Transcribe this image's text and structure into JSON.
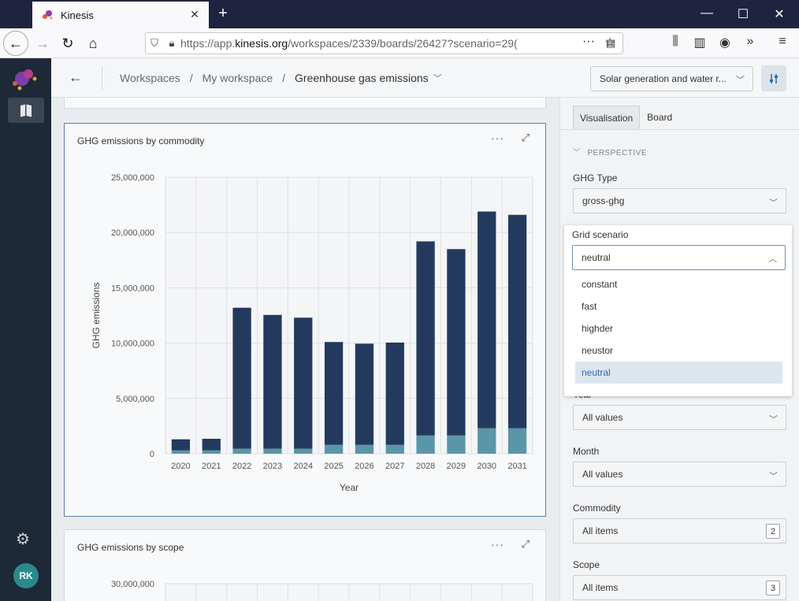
{
  "browser": {
    "tab_title": "Kinesis",
    "url_prefix": "https://app.",
    "url_domain": "kinesis.org",
    "url_rest": "/workspaces/2339/boards/26427?scenario=29("
  },
  "header": {
    "breadcrumbs": [
      "Workspaces",
      "My workspace",
      "Greenhouse gas emissions"
    ],
    "separator": "/",
    "scenario_select": "Solar generation and water r..."
  },
  "sidebar": {
    "avatar_initials": "RK"
  },
  "cards": [
    {
      "title": "GHG emissions by commodity"
    },
    {
      "title": "GHG emissions by scope"
    }
  ],
  "panel": {
    "tabs": [
      "Visualisation",
      "Board"
    ],
    "section": "PERSPECTIVE",
    "ghg_type_label": "GHG Type",
    "ghg_type_value": "gross-ghg",
    "year_label": "Year",
    "year_value": "All values",
    "month_label": "Month",
    "month_value": "All values",
    "commodity_label": "Commodity",
    "commodity_value": "All items",
    "commodity_count": "2",
    "scope_label": "Scope",
    "scope_value": "All items",
    "scope_count": "3"
  },
  "grid_dropdown": {
    "label": "Grid scenario",
    "value": "neutral",
    "options": [
      "constant",
      "fast",
      "highder",
      "neustor",
      "neutral"
    ],
    "selected_index": 4
  },
  "chart_data": [
    {
      "type": "bar",
      "stacked": true,
      "title": "GHG emissions by commodity",
      "xlabel": "Year",
      "ylabel": "GHG emissions",
      "ylim": [
        0,
        25000000
      ],
      "yticks": [
        "0",
        "5,000,000",
        "10,000,000",
        "15,000,000",
        "20,000,000",
        "25,000,000"
      ],
      "categories": [
        "2020",
        "2021",
        "2022",
        "2023",
        "2024",
        "2025",
        "2026",
        "2027",
        "2028",
        "2029",
        "2030",
        "2031"
      ],
      "grid": true,
      "colors": [
        "#5a96a8",
        "#233a5e"
      ],
      "series": [
        {
          "values": [
            300000,
            300000,
            450000,
            450000,
            450000,
            800000,
            800000,
            800000,
            1650000,
            1650000,
            2300000,
            2300000
          ]
        },
        {
          "values": [
            1000000,
            1050000,
            12750000,
            12100000,
            11850000,
            9300000,
            9150000,
            9250000,
            17550000,
            16850000,
            19600000,
            19300000
          ]
        }
      ]
    },
    {
      "type": "bar",
      "title": "GHG emissions by scope",
      "yticks": [
        "30,000,000"
      ]
    }
  ],
  "colors": {
    "sidebar": "#1d2936",
    "accent": "#2f6ea8",
    "bar_dark": "#233a5e",
    "bar_light": "#5a96a8"
  }
}
